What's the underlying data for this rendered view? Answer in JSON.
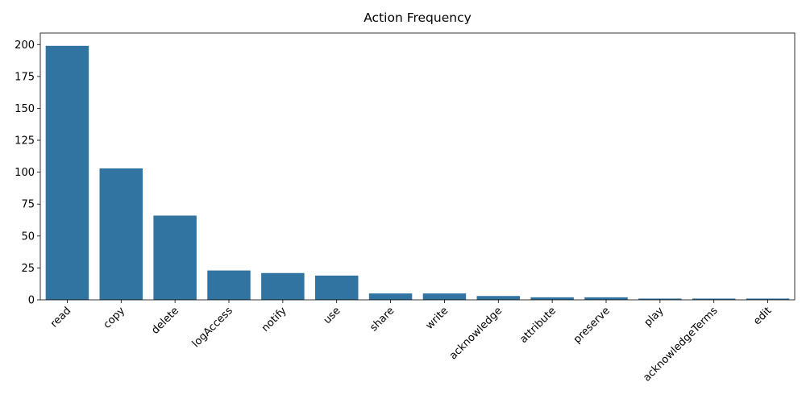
{
  "chart_data": {
    "type": "bar",
    "title": "Action Frequency",
    "xlabel": "",
    "ylabel": "",
    "categories": [
      "read",
      "copy",
      "delete",
      "logAccess",
      "notify",
      "use",
      "share",
      "write",
      "acknowledge",
      "attribute",
      "preserve",
      "play",
      "acknowledgeTerms",
      "edit"
    ],
    "values": [
      199,
      103,
      66,
      23,
      21,
      19,
      5,
      5,
      3,
      2,
      2,
      1,
      1,
      1
    ],
    "ylim": [
      0,
      209
    ],
    "yticks": [
      0,
      25,
      50,
      75,
      100,
      125,
      150,
      175,
      200
    ],
    "bar_color": "#3274a1",
    "grid": false,
    "legend": "none"
  }
}
